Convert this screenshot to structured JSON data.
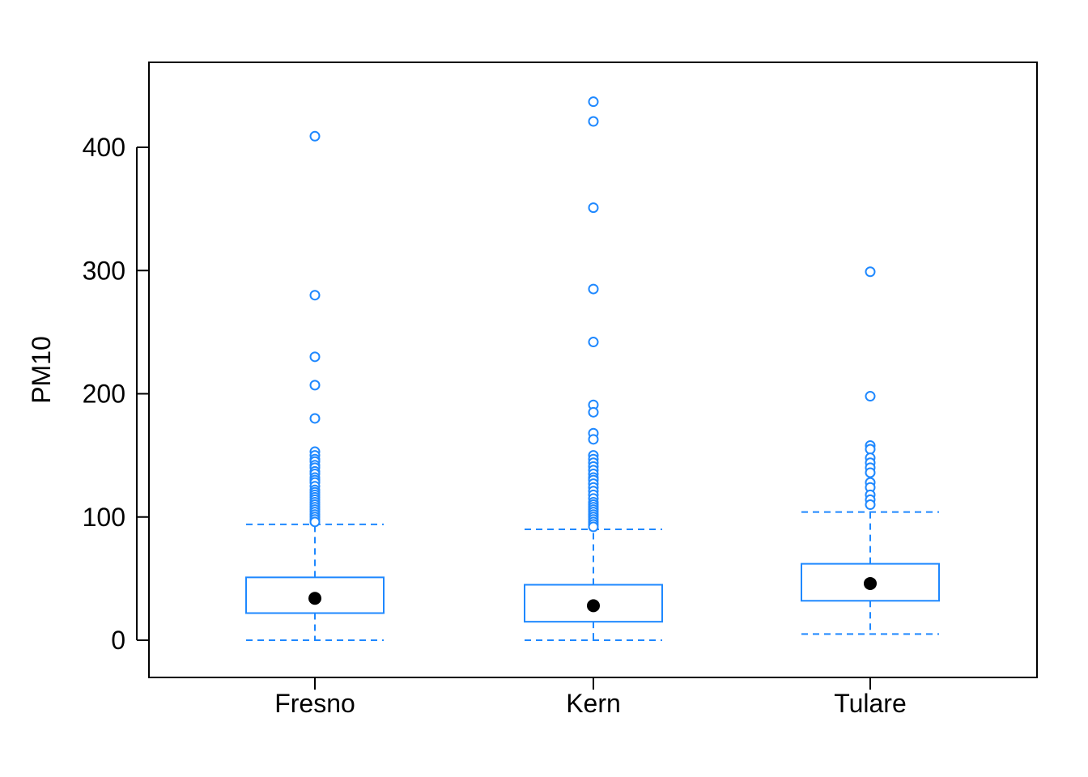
{
  "chart_data": {
    "type": "boxplot",
    "title": "",
    "xlabel": "",
    "ylabel": "PM10",
    "ylim": [
      -30,
      470
    ],
    "yticks": [
      0,
      100,
      200,
      300,
      400
    ],
    "grid": false,
    "legend": "none",
    "colors": {
      "box": "#1E88FF",
      "median_point": "#000000",
      "frame": "#000000"
    },
    "categories": [
      "Fresno",
      "Kern",
      "Tulare"
    ],
    "boxes": [
      {
        "name": "Fresno",
        "whisker_low": 0,
        "q1": 22,
        "median": 34,
        "q3": 51,
        "whisker_high": 94,
        "outliers": [
          409,
          280,
          230,
          207,
          180,
          153,
          150,
          147,
          145,
          142,
          140,
          137,
          135,
          132,
          130,
          128,
          125,
          122,
          120,
          118,
          116,
          114,
          112,
          110,
          108,
          106,
          104,
          102,
          100,
          98,
          96
        ]
      },
      {
        "name": "Kern",
        "whisker_low": 0,
        "q1": 15,
        "median": 28,
        "q3": 45,
        "whisker_high": 90,
        "outliers": [
          437,
          421,
          351,
          285,
          242,
          191,
          185,
          168,
          163,
          150,
          147,
          144,
          141,
          138,
          135,
          132,
          130,
          127,
          124,
          121,
          118,
          115,
          112,
          110,
          108,
          106,
          104,
          102,
          100,
          98,
          96,
          94,
          92
        ]
      },
      {
        "name": "Tulare",
        "whisker_low": 5,
        "q1": 32,
        "median": 46,
        "q3": 62,
        "whisker_high": 104,
        "outliers": [
          299,
          198,
          158,
          155,
          148,
          144,
          140,
          136,
          128,
          124,
          118,
          114,
          110
        ]
      }
    ]
  }
}
